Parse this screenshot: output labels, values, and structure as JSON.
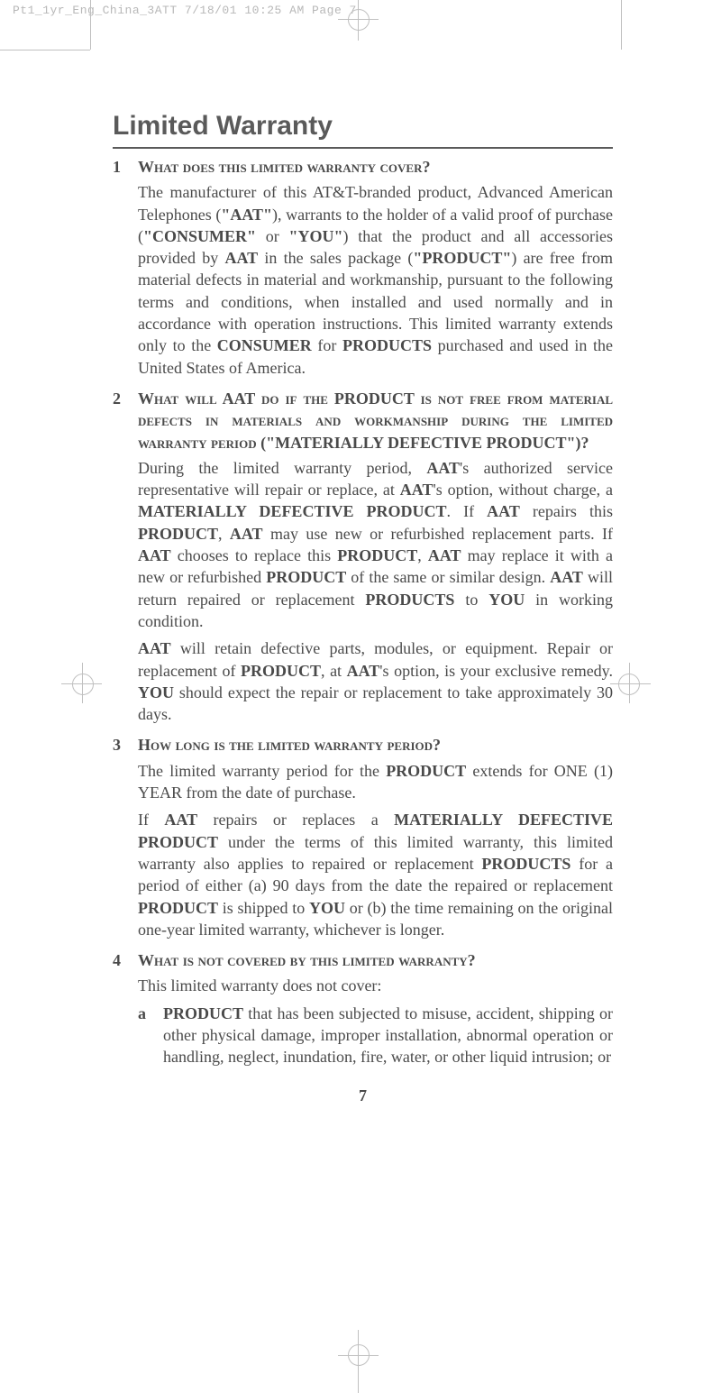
{
  "fileHeader": "Pt1_1yr_Eng_China_3ATT  7/18/01  10:25 AM  Page 7",
  "title": "Limited Warranty",
  "sections": {
    "s1": {
      "num": "1",
      "heading": "What does this limited warranty cover?",
      "body1": "The manufacturer of this AT&T-branded product, Advanced American Telephones (<b>\"AAT\"</b>), warrants to the holder of a valid proof of purchase (<b>\"CONSUMER\"</b> or <b>\"YOU\"</b>) that the product and all accessories provided by <b>AAT</b> in the sales package (<b>\"PRODUCT\"</b>) are free from material defects in material and workmanship, pursuant to the following terms and conditions, when installed and used normally and in accordance with operation instructions. This limited warranty extends only to the <b>CONSUMER</b> for <b>PRODUCTS</b> purchased and used in the United States of America."
    },
    "s2": {
      "num": "2",
      "heading": "What will AAT do if the PRODUCT is not free from material defects in materials and workmanship during the limited warranty period (\"MATERIALLY DEFECTIVE PRODUCT\")?",
      "body1": "During the limited warranty period, <b>AAT</b>'s authorized service representative will repair or replace, at <b>AAT</b>'s option, without charge, a <b>MATERIALLY DEFECTIVE PRODUCT</b>. If <b>AAT</b> repairs this <b>PRODUCT</b>, <b>AAT</b> may use new or refurbished replacement parts. If <b>AAT</b> chooses to replace this <b>PRODUCT</b>, <b>AAT</b> may replace it with a new or refurbished <b>PRODUCT</b> of the same or similar design. <b>AAT</b> will return repaired or replacement <b>PRODUCTS</b> to <b>YOU</b> in working condition.",
      "body2": "<b>AAT</b> will retain defective parts, modules, or equipment. Repair or replacement of <b>PRODUCT</b>, at <b>AAT</b>'s option, is your exclusive remedy. <b>YOU</b> should expect the repair or replacement to take approximately 30 days."
    },
    "s3": {
      "num": "3",
      "heading": "How long is the limited warranty period?",
      "body1": "The limited warranty period for the <b>PRODUCT</b> extends for ONE (1) YEAR from the date of purchase.",
      "body2": "If <b>AAT</b> repairs or replaces a <b>MATERIALLY DEFECTIVE PRODUCT</b> under the terms of this limited warranty, this limited warranty also applies to repaired or replacement <b>PRODUCTS</b> for a period of either (a) 90 days from the date the repaired or replacement <b>PRODUCT</b> is shipped to <b>YOU</b> or (b) the time remaining on the original one-year limited warranty, whichever is longer."
    },
    "s4": {
      "num": "4",
      "heading": "What is not covered by this limited warranty?",
      "body1": "This limited warranty does not cover:",
      "subA": {
        "letter": "a",
        "text": "<b>PRODUCT</b> that has been subjected to misuse, accident, shipping or other physical damage, improper installation, abnormal operation or handling, neglect, inundation, fire, water, or other liquid intrusion; or"
      }
    }
  },
  "pageNum": "7"
}
